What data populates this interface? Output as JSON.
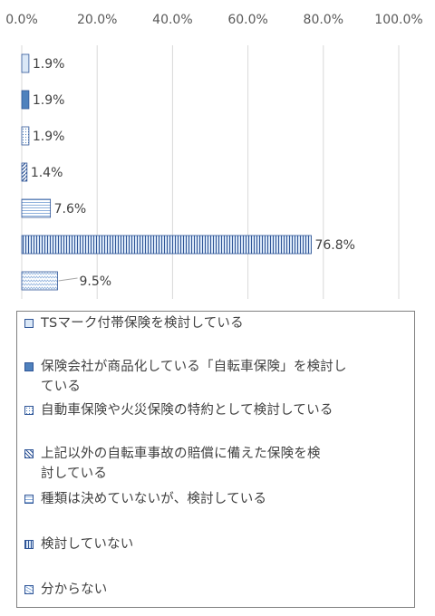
{
  "chart_data": {
    "type": "bar",
    "orientation": "horizontal",
    "x_ticks": [
      "0.0%",
      "20.0%",
      "40.0%",
      "60.0%",
      "80.0%",
      "100.0%"
    ],
    "xlim": [
      0,
      100
    ],
    "grid": true,
    "legend_position": "bottom",
    "series": [
      {
        "name": "TSマーク付帯保険を検討している",
        "value": 1.9,
        "label": "1.9%",
        "fill": "#dbe8f7",
        "pattern": "solid"
      },
      {
        "name": "保険会社が商品化している「自転車保険」を検討している",
        "value": 1.9,
        "label": "1.9%",
        "fill": "#4f81bd",
        "pattern": "solid"
      },
      {
        "name": "自動車保険や火災保険の特約として検討している",
        "value": 1.9,
        "label": "1.9%",
        "fill": "#ffffff",
        "pattern": "dots"
      },
      {
        "name": "上記以外の自転車事故の賠償に備えた保険を検討している",
        "value": 1.4,
        "label": "1.4%",
        "fill": "#ffffff",
        "pattern": "diag"
      },
      {
        "name": "種類は決めていないが、検討している",
        "value": 7.6,
        "label": "7.6%",
        "fill": "#ffffff",
        "pattern": "hlines"
      },
      {
        "name": "検討していない",
        "value": 76.8,
        "label": "76.8%",
        "fill": "#dbe8f7",
        "pattern": "vlines"
      },
      {
        "name": "分からない",
        "value": 9.5,
        "label": "9.5%",
        "fill": "#ffffff",
        "pattern": "zigzag"
      }
    ]
  },
  "legend": {
    "items": [
      "TSマーク付帯保険を検討している",
      "保険会社が商品化している「自転車保険」を検討し\nている",
      "自動車保険や火災保険の特約として検討している",
      "上記以外の自転車事故の賠償に備えた保険を検\n討している",
      "種類は決めていないが、検討している",
      "検討していない",
      "分からない"
    ]
  }
}
